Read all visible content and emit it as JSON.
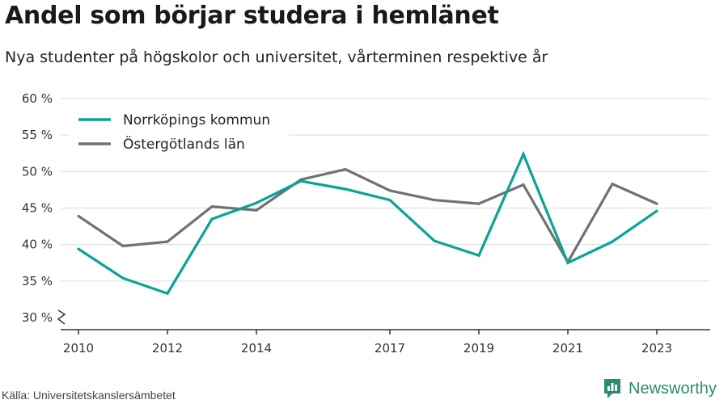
{
  "title": "Andel som börjar studera i hemlänet",
  "subtitle": "Nya studenter på högskolor och universitet, vårterminen respektive år",
  "source": "Källa: Universitetskanslersämbetet",
  "brand": {
    "name": "Newsworthy",
    "color": "#2a8a72"
  },
  "chart_data": {
    "type": "line",
    "x": [
      2010,
      2011,
      2012,
      2013,
      2014,
      2015,
      2016,
      2017,
      2018,
      2019,
      2020,
      2021,
      2022,
      2023
    ],
    "xticks": [
      2010,
      2012,
      2014,
      2017,
      2019,
      2021,
      2023
    ],
    "ylim": [
      30,
      60
    ],
    "yticks": [
      30,
      35,
      40,
      45,
      50,
      55,
      60
    ],
    "ytick_labels": [
      "30 %",
      "35 %",
      "40 %",
      "45 %",
      "50 %",
      "55 %",
      "60 %"
    ],
    "grid": true,
    "legend_position": "top-left",
    "series": [
      {
        "name": "Norrköpings kommun",
        "color": "#0aa396",
        "values": [
          39.4,
          35.4,
          33.3,
          43.5,
          45.7,
          48.7,
          47.6,
          46.1,
          40.5,
          38.5,
          52.4,
          37.5,
          40.4,
          44.6
        ]
      },
      {
        "name": "Östergötlands län",
        "color": "#717075",
        "values": [
          43.9,
          39.8,
          40.4,
          45.2,
          44.7,
          48.9,
          50.3,
          47.4,
          46.1,
          45.6,
          48.2,
          37.6,
          48.3,
          45.6
        ]
      }
    ]
  }
}
